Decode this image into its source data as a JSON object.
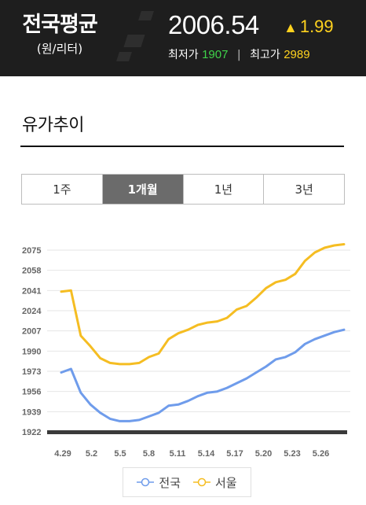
{
  "header": {
    "title": "전국평균",
    "unit": "(원/리터)",
    "price": "2006.54",
    "change_symbol": "▲",
    "change": "1.99",
    "min_label": "최저가",
    "min_value": "1907",
    "max_label": "최고가",
    "max_value": "2989"
  },
  "section": {
    "title": "유가추이"
  },
  "tabs": [
    {
      "label": "1주",
      "active": false
    },
    {
      "label": "1개월",
      "active": true
    },
    {
      "label": "1년",
      "active": false
    },
    {
      "label": "3년",
      "active": false
    }
  ],
  "chart_data": {
    "type": "line",
    "x_ticks": [
      "4.29",
      "5.2",
      "5.5",
      "5.8",
      "5.11",
      "5.14",
      "5.17",
      "5.20",
      "5.23",
      "5.26"
    ],
    "y_ticks": [
      1922,
      1939,
      1956,
      1973,
      1990,
      2007,
      2024,
      2041,
      2058,
      2075
    ],
    "ylim": [
      1922,
      2080
    ],
    "grid": "horizontal",
    "legend_position": "bottom",
    "series": [
      {
        "name": "전국",
        "color": "#6f9ceb",
        "values": [
          1972,
          1975,
          1955,
          1945,
          1938,
          1933,
          1931,
          1931,
          1932,
          1935,
          1938,
          1944,
          1945,
          1948,
          1952,
          1955,
          1956,
          1959,
          1963,
          1967,
          1972,
          1977,
          1983,
          1985,
          1989,
          1996,
          2000,
          2003,
          2006,
          2008
        ]
      },
      {
        "name": "서울",
        "color": "#f5bd22",
        "values": [
          2040,
          2041,
          2003,
          1994,
          1984,
          1980,
          1979,
          1979,
          1980,
          1985,
          1988,
          2000,
          2005,
          2008,
          2012,
          2014,
          2015,
          2018,
          2025,
          2028,
          2035,
          2043,
          2048,
          2050,
          2055,
          2066,
          2073,
          2077,
          2079,
          2080
        ]
      }
    ]
  }
}
